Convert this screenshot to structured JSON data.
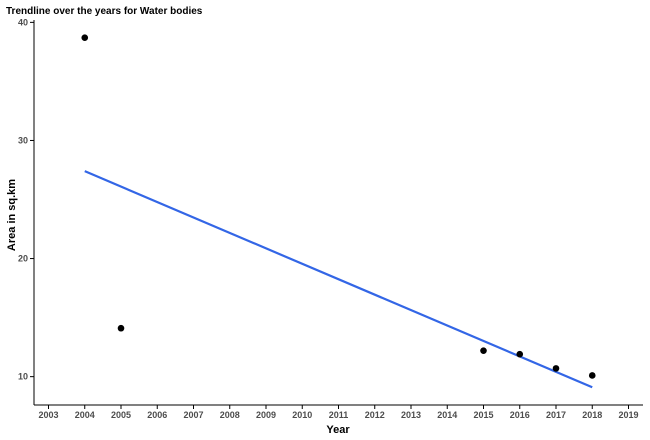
{
  "chart_data": {
    "type": "scatter",
    "title": "Trendline over the years for Water bodies",
    "xlabel": "Year",
    "ylabel": "Area in sq.km",
    "xlim": [
      2002.6,
      2019.4
    ],
    "ylim": [
      7.6,
      40.2
    ],
    "x_ticks": [
      2003,
      2004,
      2005,
      2006,
      2007,
      2008,
      2009,
      2010,
      2011,
      2012,
      2013,
      2014,
      2015,
      2016,
      2017,
      2018,
      2019
    ],
    "y_ticks": [
      10,
      20,
      30,
      40
    ],
    "grid": false,
    "legend": "none",
    "series": [
      {
        "x": [
          2004,
          2005,
          2015,
          2016,
          2017,
          2018
        ],
        "y": [
          38.7,
          14.1,
          12.2,
          11.9,
          10.7,
          10.1
        ]
      }
    ],
    "trendline": {
      "type": "linear",
      "x": [
        2004,
        2018
      ],
      "y": [
        27.4,
        9.1
      ]
    },
    "colors": {
      "points": "#000000",
      "trendline": "#3366e6",
      "axis": "#000000",
      "tick_labels": "#4d4d4d"
    }
  }
}
